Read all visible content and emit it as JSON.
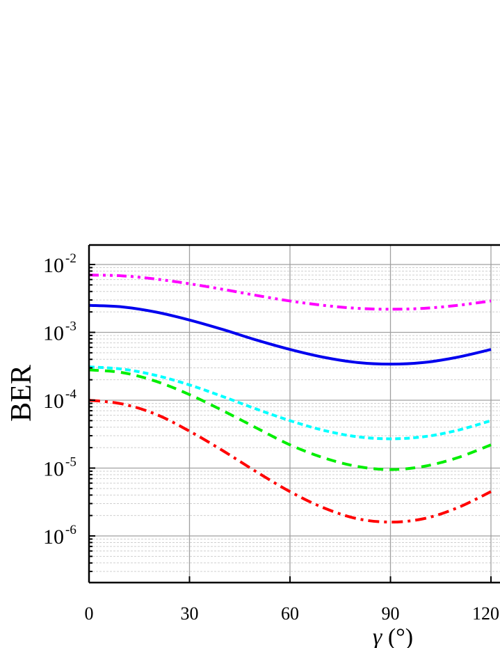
{
  "chart_data": {
    "type": "line",
    "title": "",
    "xlabel": "γ (°)",
    "ylabel": "BER",
    "xlim": [
      0,
      180
    ],
    "ylim": [
      2e-07,
      0.02
    ],
    "yscale": "log",
    "grid": true,
    "x_ticks": [
      "0",
      "30",
      "60",
      "90",
      "120"
    ],
    "y_ticks": [
      {
        "base": "10",
        "exp": "-2"
      },
      {
        "base": "10",
        "exp": "-3"
      },
      {
        "base": "10",
        "exp": "-4"
      },
      {
        "base": "10",
        "exp": "-5"
      },
      {
        "base": "10",
        "exp": "-6"
      }
    ],
    "x": [
      0,
      10,
      20,
      30,
      40,
      50,
      60,
      70,
      80,
      90,
      100,
      110,
      120
    ],
    "series": [
      {
        "color": "#ff00ff",
        "style": "dash-dot-dot",
        "values": [
          0.007,
          0.0068,
          0.0061,
          0.0052,
          0.0043,
          0.0035,
          0.0029,
          0.0025,
          0.00226,
          0.00219,
          0.00226,
          0.0025,
          0.0029
        ]
      },
      {
        "color": "#0000ee",
        "style": "solid",
        "values": [
          0.0025,
          0.00237,
          0.00199,
          0.00152,
          0.0011,
          0.00077,
          0.00056,
          0.00043,
          0.00036,
          0.00034,
          0.00036,
          0.00043,
          0.00056
        ]
      },
      {
        "color": "#00ffff",
        "style": "short-dash",
        "values": [
          0.00031,
          0.000287,
          0.000232,
          0.000168,
          0.000113,
          7.4e-05,
          5e-05,
          3.6e-05,
          2.9e-05,
          2.7e-05,
          2.9e-05,
          3.6e-05,
          5e-05
        ]
      },
      {
        "color": "#00ee00",
        "style": "dash",
        "values": [
          0.00028,
          0.000255,
          0.00019,
          0.000121,
          7e-05,
          3.9e-05,
          2.2e-05,
          1.42e-05,
          1.06e-05,
          9.5e-06,
          1.06e-05,
          1.42e-05,
          2.2e-05
        ]
      },
      {
        "color": "#ff0000",
        "style": "dash-dot",
        "values": [
          0.0001,
          8.8e-05,
          6.2e-05,
          3.5e-05,
          1.8e-05,
          8.8e-06,
          4.5e-06,
          2.6e-06,
          1.8e-06,
          1.6e-06,
          1.8e-06,
          2.6e-06,
          4.5e-06
        ]
      }
    ]
  }
}
